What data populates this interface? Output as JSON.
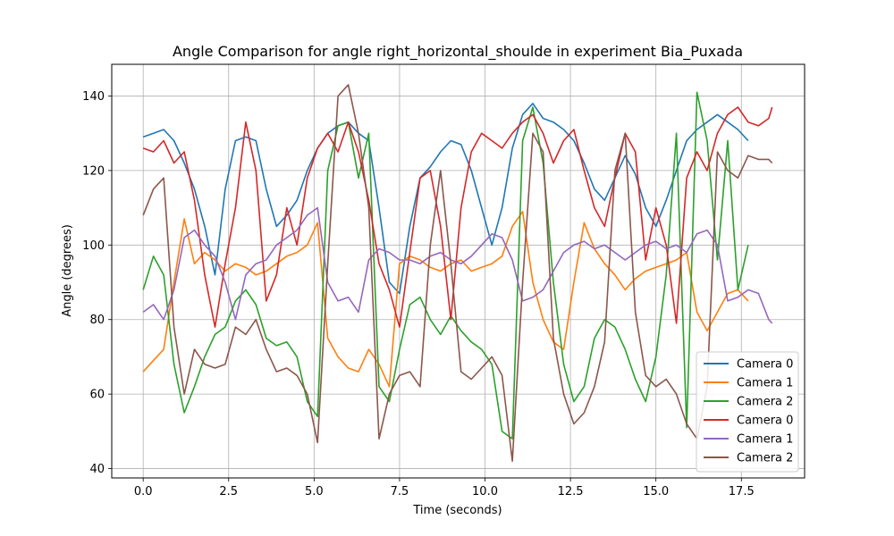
{
  "chart_data": {
    "type": "line",
    "title": "Angle Comparison for angle right_horizontal_shoulde in experiment Bia_Puxada",
    "xlabel": "Time (seconds)",
    "ylabel": "Angle (degrees)",
    "xlim": [
      -0.92,
      19.35
    ],
    "ylim": [
      37.5,
      148.5
    ],
    "xticks": [
      0.0,
      2.5,
      5.0,
      7.5,
      10.0,
      12.5,
      15.0,
      17.5
    ],
    "xtick_labels": [
      "0.0",
      "2.5",
      "5.0",
      "7.5",
      "10.0",
      "12.5",
      "15.0",
      "17.5"
    ],
    "yticks": [
      40,
      60,
      80,
      100,
      120,
      140
    ],
    "ytick_labels": [
      "40",
      "60",
      "80",
      "100",
      "120",
      "140"
    ],
    "grid": true,
    "legend_position": "lower-right",
    "series": [
      {
        "name": "Camera 0",
        "color": "#1f77b4",
        "x": [
          0.0,
          0.3,
          0.6,
          0.9,
          1.2,
          1.5,
          1.8,
          2.1,
          2.4,
          2.7,
          3.0,
          3.3,
          3.6,
          3.9,
          4.2,
          4.5,
          4.8,
          5.1,
          5.4,
          5.7,
          6.0,
          6.3,
          6.6,
          6.9,
          7.2,
          7.5,
          7.8,
          8.1,
          8.4,
          8.7,
          9.0,
          9.3,
          9.6,
          9.9,
          10.2,
          10.5,
          10.8,
          11.1,
          11.4,
          11.7,
          12.0,
          12.3,
          12.6,
          12.9,
          13.2,
          13.5,
          13.8,
          14.1,
          14.4,
          14.7,
          15.0,
          15.3,
          15.6,
          15.9,
          16.2,
          16.5,
          16.8,
          17.1,
          17.4,
          17.7
        ],
        "y": [
          129,
          130,
          131,
          128,
          122,
          115,
          105,
          92,
          115,
          128,
          129,
          128,
          115,
          105,
          108,
          112,
          120,
          126,
          130,
          132,
          133,
          130,
          128,
          110,
          90,
          87,
          105,
          118,
          121,
          125,
          128,
          127,
          120,
          110,
          100,
          110,
          126,
          135,
          138,
          134,
          133,
          131,
          128,
          122,
          115,
          112,
          118,
          124,
          119,
          110,
          105,
          112,
          120,
          128,
          131,
          133,
          135,
          133,
          131,
          128
        ]
      },
      {
        "name": "Camera 1",
        "color": "#ff7f0e",
        "x": [
          0.0,
          0.3,
          0.6,
          0.9,
          1.2,
          1.5,
          1.8,
          2.1,
          2.4,
          2.7,
          3.0,
          3.3,
          3.6,
          3.9,
          4.2,
          4.5,
          4.8,
          5.1,
          5.4,
          5.7,
          6.0,
          6.3,
          6.6,
          6.9,
          7.2,
          7.5,
          7.8,
          8.1,
          8.4,
          8.7,
          9.0,
          9.3,
          9.6,
          9.9,
          10.2,
          10.5,
          10.8,
          11.1,
          11.4,
          11.7,
          12.0,
          12.3,
          12.6,
          12.9,
          13.2,
          13.5,
          13.8,
          14.1,
          14.4,
          14.7,
          15.0,
          15.3,
          15.6,
          15.9,
          16.2,
          16.5,
          16.8,
          17.1,
          17.4,
          17.7
        ],
        "y": [
          66,
          69,
          72,
          90,
          107,
          95,
          98,
          96,
          93,
          95,
          94,
          92,
          93,
          95,
          97,
          98,
          100,
          106,
          75,
          70,
          67,
          66,
          72,
          68,
          62,
          95,
          97,
          96,
          94,
          93,
          95,
          96,
          93,
          94,
          95,
          97,
          105,
          109,
          90,
          80,
          74,
          72,
          90,
          106,
          99,
          95,
          92,
          88,
          91,
          93,
          94,
          95,
          96,
          98,
          82,
          77,
          82,
          87,
          88,
          85
        ]
      },
      {
        "name": "Camera 2",
        "color": "#2ca02c",
        "x": [
          0.0,
          0.3,
          0.6,
          0.9,
          1.2,
          1.5,
          1.8,
          2.1,
          2.4,
          2.7,
          3.0,
          3.3,
          3.6,
          3.9,
          4.2,
          4.5,
          4.8,
          5.1,
          5.4,
          5.7,
          6.0,
          6.3,
          6.6,
          6.9,
          7.2,
          7.5,
          7.8,
          8.1,
          8.4,
          8.7,
          9.0,
          9.3,
          9.6,
          9.9,
          10.2,
          10.5,
          10.8,
          11.1,
          11.4,
          11.7,
          12.0,
          12.3,
          12.6,
          12.9,
          13.2,
          13.5,
          13.8,
          14.1,
          14.4,
          14.7,
          15.0,
          15.3,
          15.6,
          15.9,
          16.2,
          16.5,
          16.8,
          17.1,
          17.4,
          17.7
        ],
        "y": [
          88,
          97,
          92,
          68,
          55,
          62,
          70,
          76,
          78,
          85,
          88,
          84,
          75,
          73,
          74,
          70,
          58,
          54,
          120,
          132,
          133,
          118,
          130,
          62,
          58,
          72,
          84,
          86,
          80,
          76,
          81,
          77,
          74,
          72,
          68,
          50,
          48,
          128,
          137,
          122,
          90,
          68,
          58,
          62,
          75,
          80,
          78,
          72,
          64,
          58,
          70,
          92,
          130,
          51,
          141,
          128,
          96,
          128,
          88,
          100
        ]
      },
      {
        "name": "Camera 0",
        "color": "#d62728",
        "x": [
          0.0,
          0.3,
          0.6,
          0.9,
          1.2,
          1.5,
          1.8,
          2.1,
          2.4,
          2.7,
          3.0,
          3.3,
          3.6,
          3.9,
          4.2,
          4.5,
          4.8,
          5.1,
          5.4,
          5.7,
          6.0,
          6.3,
          6.6,
          6.9,
          7.2,
          7.5,
          7.8,
          8.1,
          8.4,
          8.7,
          9.0,
          9.3,
          9.6,
          9.9,
          10.2,
          10.5,
          10.8,
          11.1,
          11.4,
          11.7,
          12.0,
          12.3,
          12.6,
          12.9,
          13.2,
          13.5,
          13.8,
          14.1,
          14.4,
          14.7,
          15.0,
          15.3,
          15.6,
          15.9,
          16.2,
          16.5,
          16.8,
          17.1,
          17.4,
          17.7,
          18.0,
          18.3,
          18.4
        ],
        "y": [
          126,
          125,
          128,
          122,
          125,
          112,
          92,
          78,
          95,
          110,
          133,
          120,
          85,
          92,
          110,
          100,
          118,
          126,
          130,
          125,
          133,
          125,
          112,
          95,
          88,
          78,
          98,
          118,
          120,
          105,
          80,
          110,
          125,
          130,
          128,
          126,
          130,
          133,
          135,
          130,
          122,
          128,
          131,
          120,
          110,
          105,
          118,
          130,
          125,
          96,
          110,
          100,
          79,
          118,
          125,
          120,
          130,
          135,
          137,
          133,
          132,
          134,
          137
        ]
      },
      {
        "name": "Camera 1",
        "color": "#9467bd",
        "x": [
          0.0,
          0.3,
          0.6,
          0.9,
          1.2,
          1.5,
          1.8,
          2.1,
          2.4,
          2.7,
          3.0,
          3.3,
          3.6,
          3.9,
          4.2,
          4.5,
          4.8,
          5.1,
          5.4,
          5.7,
          6.0,
          6.3,
          6.6,
          6.9,
          7.2,
          7.5,
          7.8,
          8.1,
          8.4,
          8.7,
          9.0,
          9.3,
          9.6,
          9.9,
          10.2,
          10.5,
          10.8,
          11.1,
          11.4,
          11.7,
          12.0,
          12.3,
          12.6,
          12.9,
          13.2,
          13.5,
          13.8,
          14.1,
          14.4,
          14.7,
          15.0,
          15.3,
          15.6,
          15.9,
          16.2,
          16.5,
          16.8,
          17.1,
          17.4,
          17.7,
          18.0,
          18.3,
          18.4
        ],
        "y": [
          82,
          84,
          80,
          88,
          102,
          104,
          100,
          97,
          90,
          80,
          92,
          95,
          96,
          100,
          102,
          104,
          108,
          110,
          90,
          85,
          86,
          82,
          96,
          99,
          98,
          96,
          96,
          95,
          97,
          98,
          96,
          95,
          97,
          100,
          103,
          102,
          96,
          85,
          86,
          88,
          93,
          98,
          100,
          101,
          99,
          100,
          98,
          96,
          98,
          100,
          101,
          99,
          100,
          98,
          103,
          104,
          100,
          85,
          86,
          88,
          87,
          80,
          79
        ]
      },
      {
        "name": "Camera 2",
        "color": "#8c564b",
        "x": [
          0.0,
          0.3,
          0.6,
          0.9,
          1.2,
          1.5,
          1.8,
          2.1,
          2.4,
          2.7,
          3.0,
          3.3,
          3.6,
          3.9,
          4.2,
          4.5,
          4.8,
          5.1,
          5.4,
          5.7,
          6.0,
          6.3,
          6.6,
          6.9,
          7.2,
          7.5,
          7.8,
          8.1,
          8.4,
          8.7,
          9.0,
          9.3,
          9.6,
          9.9,
          10.2,
          10.5,
          10.8,
          11.1,
          11.4,
          11.7,
          12.0,
          12.3,
          12.6,
          12.9,
          13.2,
          13.5,
          13.8,
          14.1,
          14.4,
          14.7,
          15.0,
          15.3,
          15.6,
          15.9,
          16.2,
          16.5,
          16.8,
          17.1,
          17.4,
          17.7,
          18.0,
          18.3,
          18.4
        ],
        "y": [
          108,
          115,
          118,
          78,
          60,
          72,
          68,
          67,
          68,
          78,
          76,
          80,
          72,
          66,
          67,
          65,
          60,
          47,
          95,
          140,
          143,
          130,
          110,
          48,
          60,
          65,
          66,
          62,
          100,
          120,
          95,
          66,
          64,
          67,
          70,
          65,
          42,
          90,
          130,
          125,
          75,
          60,
          52,
          55,
          62,
          74,
          120,
          130,
          82,
          65,
          62,
          64,
          60,
          52,
          48,
          62,
          125,
          120,
          118,
          124,
          123,
          123,
          122
        ]
      }
    ]
  }
}
